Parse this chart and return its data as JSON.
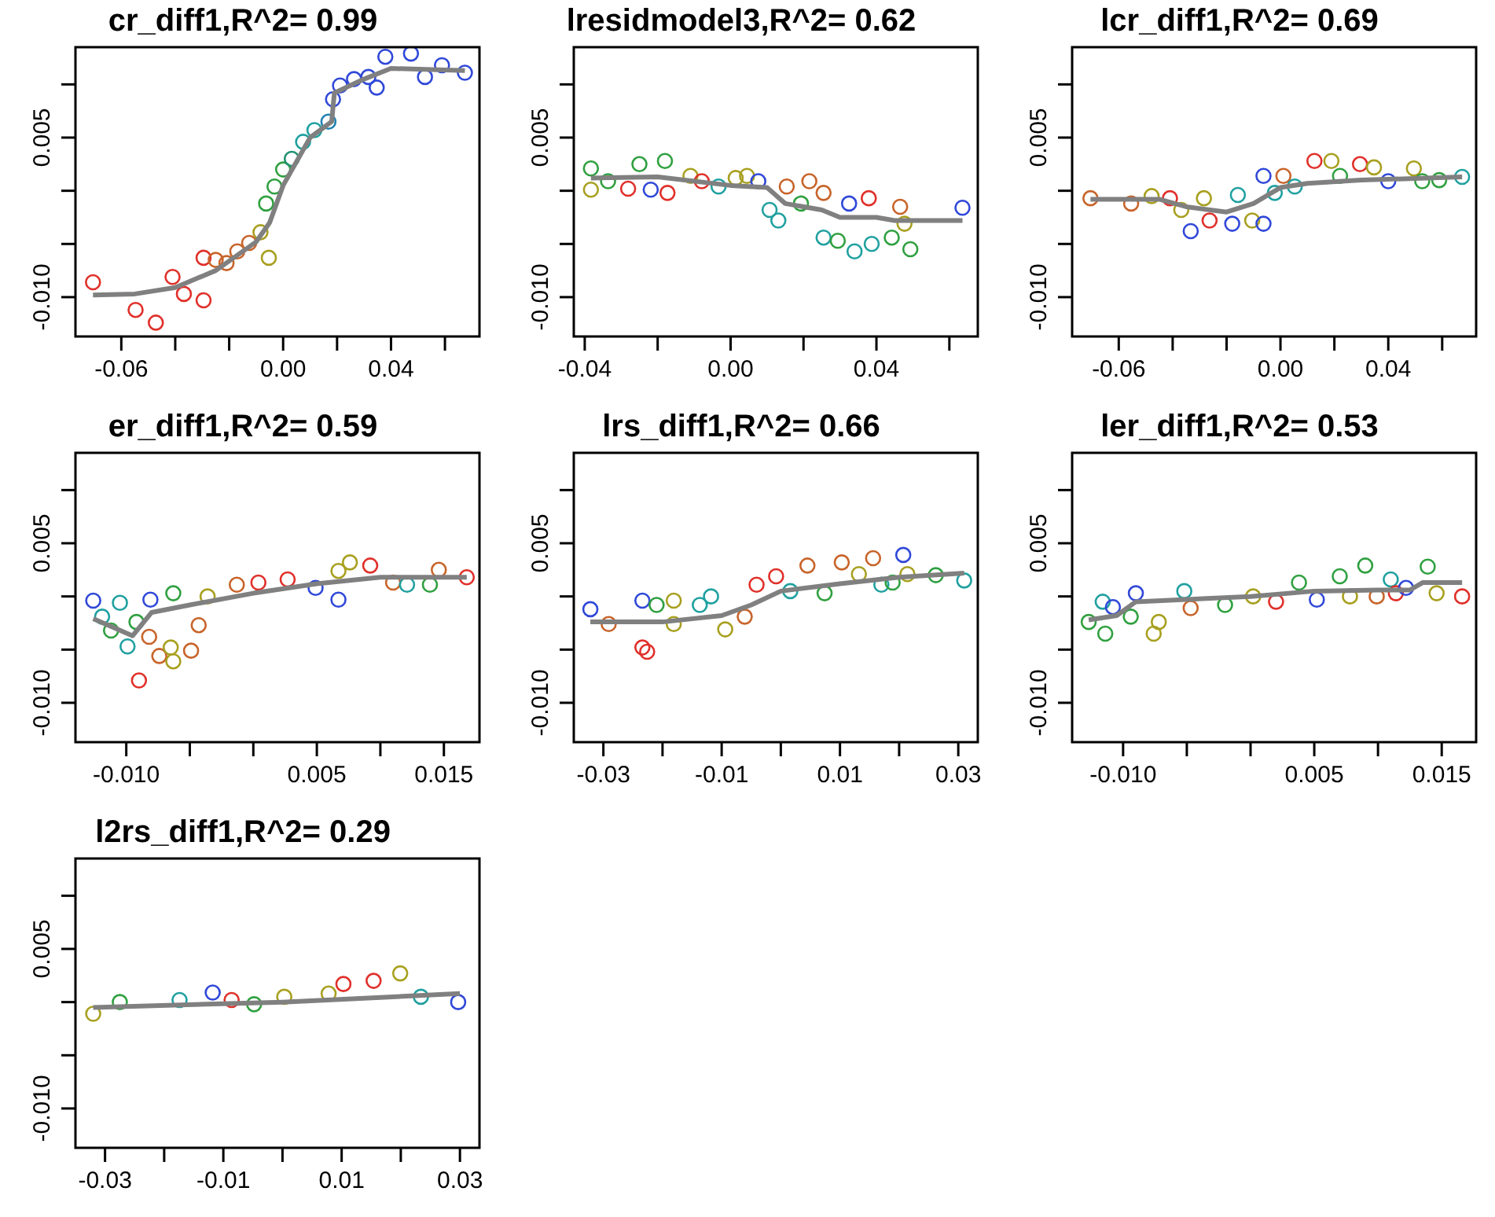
{
  "chart_data": [
    {
      "type": "scatter",
      "title": "cr_diff1,R^2= 0.99",
      "xlim": [
        -0.077,
        0.0728
      ],
      "xticks": [
        -0.06,
        {
          "value": -0.04,
          "label": null
        },
        {
          "value": -0.02,
          "label": null
        },
        {
          "value": 0,
          "label": "0.00"
        },
        {
          "value": 0.02,
          "label": null
        },
        0.04,
        {
          "value": 0.06,
          "label": null
        }
      ],
      "ylim": [
        -0.0137,
        0.0135
      ],
      "yticks": [
        {
          "value": -0.01,
          "label": "-0.010"
        },
        {
          "value": -0.005,
          "label": null
        },
        {
          "value": 0,
          "label": null
        },
        {
          "value": 0.005,
          "label": "0.005"
        },
        {
          "value": 0.01,
          "label": null
        }
      ],
      "series": [
        {
          "marker": "circle",
          "x": [
            -0.0705,
            -0.0547,
            -0.0472,
            -0.041,
            -0.0368,
            -0.0295,
            -0.0295,
            -0.025,
            -0.021,
            -0.017,
            -0.0126,
            -0.0084,
            -0.0053,
            -0.0063,
            -0.0032,
            0,
            0.0032,
            0.0074,
            0.0116,
            0.0168,
            0.0185,
            0.0211,
            0.0263,
            0.0316,
            0.0347,
            0.0379,
            0.0474,
            0.0526,
            0.0589,
            0.0674
          ],
          "values": [
            -0.0086,
            -0.0112,
            -0.0124,
            -0.0081,
            -0.0097,
            -0.0103,
            -0.0063,
            -0.0065,
            -0.0068,
            -0.0057,
            -0.0049,
            -0.0039,
            -0.0063,
            -0.0012,
            0.0004,
            0.002,
            0.003,
            0.0046,
            0.0057,
            0.0065,
            0.0086,
            0.0099,
            0.0105,
            0.0107,
            0.0097,
            0.0126,
            0.0129,
            0.0107,
            0.0118,
            0.0111
          ],
          "colors": [
            "#e0302a",
            "#e0302a",
            "#e0302a",
            "#e0302a",
            "#e0302a",
            "#e0302a",
            "#e0302a",
            "#c8642a",
            "#c8642a",
            "#c8642a",
            "#c8642a",
            "#a8a020",
            "#a8a020",
            "#30a040",
            "#30a040",
            "#30a040",
            "#209070",
            "#20a0a0",
            "#20a0a0",
            "#2080b0",
            "#3048d8",
            "#3048d8",
            "#3048d8",
            "#3048d8",
            "#3048d8",
            "#3048d8",
            "#3048d8",
            "#3048d8",
            "#3048d8",
            "#3048d8"
          ]
        },
        {
          "type": "line",
          "color": "#808080",
          "x": [
            -0.0705,
            -0.055,
            -0.04,
            -0.025,
            -0.01,
            -0.005,
            0,
            0.01,
            0.018,
            0.019,
            0.03,
            0.04,
            0.0674
          ],
          "values": [
            -0.0098,
            -0.0097,
            -0.0091,
            -0.0075,
            -0.0048,
            -0.003,
            0.0005,
            0.005,
            0.0065,
            0.0092,
            0.0105,
            0.0115,
            0.0113
          ]
        }
      ]
    },
    {
      "type": "scatter",
      "title": "lresidmodel3,R^2= 0.62",
      "xlim": [
        -0.043,
        0.0678
      ],
      "xticks": [
        -0.04,
        {
          "value": -0.02,
          "label": null
        },
        {
          "value": 0,
          "label": "0.00"
        },
        {
          "value": 0.02,
          "label": null
        },
        0.04,
        {
          "value": 0.06,
          "label": null
        }
      ],
      "ylim": [
        -0.0137,
        0.0135
      ],
      "yticks": [
        {
          "value": -0.01,
          "label": "-0.010"
        },
        {
          "value": -0.005,
          "label": null
        },
        {
          "value": 0,
          "label": null
        },
        {
          "value": 0.005,
          "label": "0.005"
        },
        {
          "value": 0.01,
          "label": null
        }
      ],
      "series": [
        {
          "marker": "circle",
          "x": [
            -0.0383,
            -0.0383,
            -0.0336,
            -0.0281,
            -0.025,
            -0.0219,
            -0.018,
            -0.0173,
            -0.011,
            -0.0079,
            -0.0033,
            0.0014,
            0.0045,
            0.0076,
            0.0107,
            0.0131,
            0.0154,
            0.0193,
            0.0216,
            0.0255,
            0.0255,
            0.0294,
            0.0325,
            0.034,
            0.0379,
            0.0387,
            0.0442,
            0.0465,
            0.0477,
            0.0493,
            0.0636
          ],
          "values": [
            0.0021,
            0.0001,
            0.0009,
            0.0002,
            0.0025,
            0.0001,
            0.0028,
            -0.0002,
            0.0014,
            0.0009,
            0.0004,
            0.0012,
            0.0014,
            0.0009,
            -0.0018,
            -0.0028,
            0.0004,
            -0.0012,
            0.0009,
            -0.0002,
            -0.0044,
            -0.0047,
            -0.0012,
            -0.0057,
            -0.0007,
            -0.005,
            -0.0044,
            -0.0015,
            -0.0031,
            -0.0055,
            -0.0016
          ],
          "colors": [
            "#30a040",
            "#a8a020",
            "#30a040",
            "#e0302a",
            "#30a040",
            "#3048d8",
            "#30a040",
            "#e0302a",
            "#a8a020",
            "#e0302a",
            "#20a0a0",
            "#a8a020",
            "#a8a020",
            "#3048d8",
            "#20a0a0",
            "#20a0a0",
            "#c8642a",
            "#30a040",
            "#c8642a",
            "#c8642a",
            "#20a0a0",
            "#30a040",
            "#3048d8",
            "#20a0a0",
            "#e0302a",
            "#20a0a0",
            "#30a040",
            "#c8642a",
            "#a8a020",
            "#30a040",
            "#3048d8"
          ]
        },
        {
          "type": "line",
          "color": "#808080",
          "x": [
            -0.0383,
            -0.02,
            0,
            0.01,
            0.015,
            0.025,
            0.03,
            0.04,
            0.045,
            0.0636
          ],
          "values": [
            0.0012,
            0.0013,
            0.0005,
            0.0003,
            -0.0012,
            -0.0018,
            -0.0025,
            -0.0025,
            -0.0028,
            -0.0028
          ]
        }
      ]
    },
    {
      "type": "scatter",
      "title": "lcr_diff1,R^2= 0.69",
      "xlim": [
        -0.0773,
        0.0726
      ],
      "xticks": [
        -0.06,
        {
          "value": -0.04,
          "label": null
        },
        {
          "value": -0.02,
          "label": null
        },
        {
          "value": 0,
          "label": "0.00"
        },
        {
          "value": 0.02,
          "label": null
        },
        0.04,
        {
          "value": 0.06,
          "label": null
        }
      ],
      "ylim": [
        -0.0137,
        0.0135
      ],
      "yticks": [
        {
          "value": -0.01,
          "label": "-0.010"
        },
        {
          "value": -0.005,
          "label": null
        },
        {
          "value": 0,
          "label": null
        },
        {
          "value": 0.005,
          "label": "0.005"
        },
        {
          "value": 0.01,
          "label": null
        }
      ],
      "series": [
        {
          "marker": "circle",
          "x": [
            -0.0705,
            -0.0554,
            -0.0478,
            -0.041,
            -0.0368,
            -0.0333,
            -0.0284,
            -0.0263,
            -0.0179,
            -0.0158,
            -0.0105,
            -0.0063,
            -0.0063,
            -0.0021,
            0.0011,
            0.0053,
            0.0126,
            0.0189,
            0.0221,
            0.0295,
            0.0347,
            0.04,
            0.0495,
            0.0526,
            0.0589,
            0.0674
          ],
          "values": [
            -0.0007,
            -0.0012,
            -0.0005,
            -0.0007,
            -0.0018,
            -0.0038,
            -0.0007,
            -0.0028,
            -0.0031,
            -0.0004,
            -0.0028,
            -0.0031,
            0.0014,
            -0.0002,
            0.0014,
            0.0004,
            0.0028,
            0.0028,
            0.0014,
            0.0025,
            0.0022,
            0.0009,
            0.0021,
            0.0009,
            0.001,
            0.0013
          ],
          "colors": [
            "#c8642a",
            "#c8642a",
            "#a8a020",
            "#e0302a",
            "#a8a020",
            "#3048d8",
            "#a8a020",
            "#e0302a",
            "#3048d8",
            "#20a0a0",
            "#a8a020",
            "#3048d8",
            "#3048d8",
            "#20a0a0",
            "#c8642a",
            "#20a0a0",
            "#e0302a",
            "#a8a020",
            "#30a040",
            "#e0302a",
            "#a8a020",
            "#3048d8",
            "#a8a020",
            "#30a040",
            "#30a040",
            "#20a0a0"
          ]
        },
        {
          "type": "line",
          "color": "#808080",
          "x": [
            -0.0705,
            -0.045,
            -0.035,
            -0.02,
            -0.01,
            0,
            0.01,
            0.03,
            0.0674
          ],
          "values": [
            -0.0008,
            -0.0008,
            -0.0015,
            -0.002,
            -0.0012,
            0.0003,
            0.0007,
            0.001,
            0.0013
          ]
        }
      ]
    },
    {
      "type": "scatter",
      "title": "er_diff1,R^2= 0.59",
      "xlim": [
        -0.014,
        0.0178
      ],
      "xticks": [
        {
          "value": -0.01,
          "label": "-0.010"
        },
        {
          "value": -0.005,
          "label": null
        },
        {
          "value": 0,
          "label": null
        },
        0.005,
        {
          "value": 0.01,
          "label": null
        },
        0.015
      ],
      "ylim": [
        -0.0137,
        0.0135
      ],
      "yticks": [
        {
          "value": -0.01,
          "label": "-0.010"
        },
        {
          "value": -0.005,
          "label": null
        },
        {
          "value": 0,
          "label": null
        },
        {
          "value": 0.005,
          "label": "0.005"
        },
        {
          "value": 0.01,
          "label": null
        }
      ],
      "series": [
        {
          "marker": "circle",
          "x": [
            -0.0126,
            -0.0119,
            -0.0112,
            -0.0105,
            -0.0099,
            -0.009,
            -0.0092,
            -0.0081,
            -0.0082,
            -0.0074,
            -0.0065,
            -0.0063,
            -0.0063,
            -0.0049,
            -0.0043,
            -0.0036,
            -0.0013,
            0.0004,
            0.0027,
            0.0049,
            0.0067,
            0.0067,
            0.0076,
            0.0092,
            0.011,
            0.0121,
            0.0139,
            0.0146,
            0.0168
          ],
          "values": [
            -0.0004,
            -0.0019,
            -0.0032,
            -0.0006,
            -0.0047,
            -0.0079,
            -0.0024,
            -0.0003,
            -0.0038,
            -0.0056,
            -0.0048,
            -0.0061,
            0.0003,
            -0.0051,
            -0.0027,
            0,
            0.0011,
            0.0013,
            0.0016,
            0.0008,
            -0.0003,
            0.0024,
            0.0032,
            0.0029,
            0.0013,
            0.0011,
            0.0011,
            0.0025,
            0.0018
          ],
          "colors": [
            "#3048d8",
            "#20a0a0",
            "#30a040",
            "#20a0a0",
            "#20a0a0",
            "#e0302a",
            "#30a040",
            "#3048d8",
            "#c8642a",
            "#c8642a",
            "#a8a020",
            "#a8a020",
            "#30a040",
            "#c8642a",
            "#c8642a",
            "#a8a020",
            "#c8642a",
            "#e0302a",
            "#e0302a",
            "#3048d8",
            "#3048d8",
            "#a8a020",
            "#a8a020",
            "#e0302a",
            "#c8642a",
            "#20a0a0",
            "#30a040",
            "#c8642a",
            "#e0302a"
          ]
        },
        {
          "type": "line",
          "color": "#808080",
          "x": [
            -0.0126,
            -0.0095,
            -0.008,
            -0.005,
            0,
            0.005,
            0.01,
            0.0168
          ],
          "values": [
            -0.0021,
            -0.0037,
            -0.0015,
            -0.0008,
            0.0003,
            0.0012,
            0.0018,
            0.0018
          ]
        }
      ]
    },
    {
      "type": "scatter",
      "title": "lrs_diff1,R^2= 0.66",
      "xlim": [
        -0.035,
        0.0333
      ],
      "xticks": [
        -0.03,
        {
          "value": -0.02,
          "label": null
        },
        -0.01,
        {
          "value": 0,
          "label": null
        },
        0.01,
        {
          "value": 0.02,
          "label": null
        },
        0.03
      ],
      "ylim": [
        -0.0137,
        0.0135
      ],
      "yticks": [
        {
          "value": -0.01,
          "label": "-0.010"
        },
        {
          "value": -0.005,
          "label": null
        },
        {
          "value": 0,
          "label": null
        },
        {
          "value": 0.005,
          "label": "0.005"
        },
        {
          "value": 0.01,
          "label": null
        }
      ],
      "series": [
        {
          "marker": "circle",
          "x": [
            -0.0322,
            -0.0291,
            -0.0234,
            -0.0234,
            -0.0226,
            -0.021,
            -0.0181,
            -0.0181,
            -0.0137,
            -0.0118,
            -0.0094,
            -0.0061,
            -0.0041,
            -0.0008,
            0.0016,
            0.0045,
            0.0074,
            0.0103,
            0.0132,
            0.0156,
            0.017,
            0.0189,
            0.0207,
            0.0214,
            0.0262,
            0.031
          ],
          "values": [
            -0.0012,
            -0.0026,
            -0.0004,
            -0.0048,
            -0.0052,
            -0.0008,
            -0.0004,
            -0.0026,
            -0.0008,
            0,
            -0.0031,
            -0.0019,
            0.0011,
            0.0019,
            0.0005,
            0.0029,
            0.0003,
            0.0032,
            0.0021,
            0.0036,
            0.0011,
            0.0013,
            0.0039,
            0.0021,
            0.002,
            0.0015
          ],
          "colors": [
            "#3048d8",
            "#c8642a",
            "#3048d8",
            "#e0302a",
            "#e0302a",
            "#30a040",
            "#a8a020",
            "#a8a020",
            "#20a0a0",
            "#20a0a0",
            "#a8a020",
            "#c8642a",
            "#e0302a",
            "#e0302a",
            "#20a0a0",
            "#c8642a",
            "#30a040",
            "#c8642a",
            "#a8a020",
            "#c8642a",
            "#20a0a0",
            "#30a040",
            "#3048d8",
            "#a8a020",
            "#30a040",
            "#20a0a0"
          ]
        },
        {
          "type": "line",
          "color": "#808080",
          "x": [
            -0.0322,
            -0.02,
            -0.01,
            -0.005,
            0,
            0.01,
            0.02,
            0.031
          ],
          "values": [
            -0.0024,
            -0.0024,
            -0.0018,
            -0.0008,
            0.0005,
            0.0012,
            0.0018,
            0.0022
          ]
        }
      ]
    },
    {
      "type": "scatter",
      "title": "ler_diff1,R^2= 0.53",
      "xlim": [
        -0.014,
        0.0177
      ],
      "xticks": [
        {
          "value": -0.01,
          "label": "-0.010"
        },
        {
          "value": -0.005,
          "label": null
        },
        {
          "value": 0,
          "label": null
        },
        0.005,
        {
          "value": 0.01,
          "label": null
        },
        0.015
      ],
      "ylim": [
        -0.0137,
        0.0135
      ],
      "yticks": [
        {
          "value": -0.01,
          "label": "-0.010"
        },
        {
          "value": -0.005,
          "label": null
        },
        {
          "value": 0,
          "label": null
        },
        {
          "value": 0.005,
          "label": "0.005"
        },
        {
          "value": 0.01,
          "label": null
        }
      ],
      "series": [
        {
          "marker": "circle",
          "x": [
            -0.0127,
            -0.0116,
            -0.0114,
            -0.0108,
            -0.0094,
            -0.009,
            -0.0076,
            -0.0072,
            -0.0052,
            -0.0047,
            -0.002,
            0.0002,
            0.002,
            0.0038,
            0.0052,
            0.007,
            0.0078,
            0.009,
            0.0099,
            0.011,
            0.0114,
            0.0122,
            0.0139,
            0.0146,
            0.0166
          ],
          "values": [
            -0.0024,
            -0.0005,
            -0.0035,
            -0.001,
            -0.0019,
            0.0003,
            -0.0035,
            -0.0024,
            0.0005,
            -0.0011,
            -0.0008,
            0,
            -0.0005,
            0.0013,
            -0.0003,
            0.0019,
            0,
            0.0029,
            0,
            0.0016,
            0.0003,
            0.0008,
            0.0028,
            0.0003,
            0
          ],
          "colors": [
            "#30a040",
            "#20a0a0",
            "#30a040",
            "#3048d8",
            "#30a040",
            "#3048d8",
            "#a8a020",
            "#a8a020",
            "#20a0a0",
            "#c8642a",
            "#30a040",
            "#a8a020",
            "#e0302a",
            "#30a040",
            "#3048d8",
            "#30a040",
            "#a8a020",
            "#30a040",
            "#c8642a",
            "#20a0a0",
            "#e0302a",
            "#3048d8",
            "#30a040",
            "#a8a020",
            "#e0302a"
          ]
        },
        {
          "type": "line",
          "color": "#808080",
          "x": [
            -0.0127,
            -0.0105,
            -0.009,
            0,
            0.005,
            0.01,
            0.0125,
            0.0135,
            0.0166
          ],
          "values": [
            -0.0022,
            -0.0018,
            -0.0005,
            0,
            0.0005,
            0.0006,
            0.0006,
            0.0013,
            0.0013
          ]
        }
      ]
    },
    {
      "type": "scatter",
      "title": "l2rs_diff1,R^2= 0.29",
      "xlim": [
        -0.035,
        0.0333
      ],
      "xticks": [
        -0.03,
        {
          "value": -0.02,
          "label": null
        },
        -0.01,
        {
          "value": 0,
          "label": null
        },
        0.01,
        {
          "value": 0.02,
          "label": null
        },
        0.03
      ],
      "ylim": [
        -0.0137,
        0.0135
      ],
      "yticks": [
        {
          "value": -0.01,
          "label": "-0.010"
        },
        {
          "value": -0.005,
          "label": null
        },
        {
          "value": 0,
          "label": null
        },
        {
          "value": 0.005,
          "label": "0.005"
        },
        {
          "value": 0.01,
          "label": null
        }
      ],
      "series": [
        {
          "marker": "circle",
          "x": [
            -0.032,
            -0.0275,
            -0.0174,
            -0.0118,
            -0.0086,
            -0.0048,
            0.0003,
            0.0078,
            0.0103,
            0.0154,
            0.0199,
            0.0234,
            0.0297
          ],
          "values": [
            -0.0011,
            0,
            0.0002,
            0.0009,
            0.0002,
            -0.0002,
            0.0005,
            0.0008,
            0.0017,
            0.002,
            0.0027,
            0.0005,
            0
          ],
          "colors": [
            "#a8a020",
            "#30a040",
            "#20a0a0",
            "#3048d8",
            "#e0302a",
            "#30a040",
            "#a8a020",
            "#a8a020",
            "#e0302a",
            "#e0302a",
            "#a8a020",
            "#20a0a0",
            "#3048d8"
          ]
        },
        {
          "type": "line",
          "color": "#808080",
          "x": [
            -0.032,
            0,
            0.03
          ],
          "values": [
            -0.0005,
            0,
            0.0008
          ]
        }
      ]
    }
  ]
}
